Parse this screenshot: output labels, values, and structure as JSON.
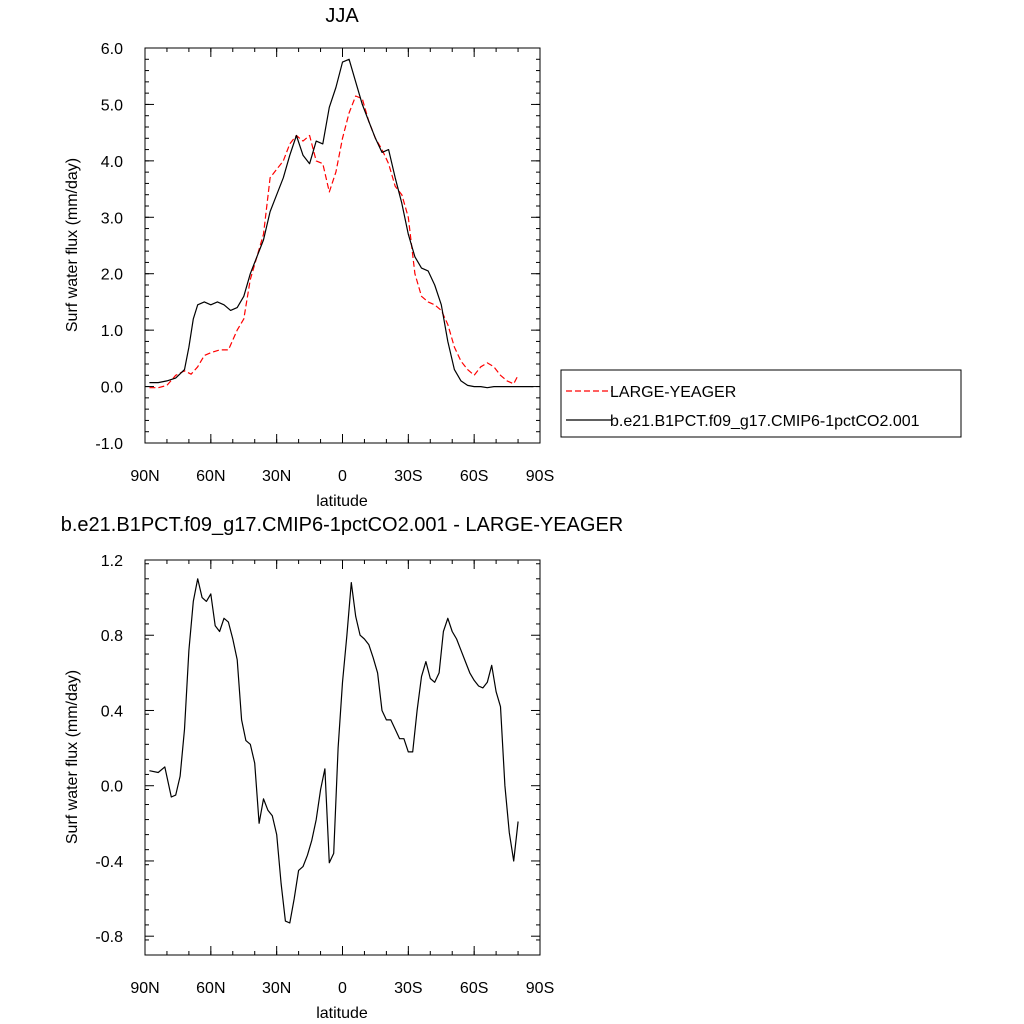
{
  "chart_data": [
    {
      "type": "line",
      "title": "JJA",
      "xlabel": "latitude",
      "ylabel": "Surf water flux (mm/day)",
      "xlim": [
        90,
        -90
      ],
      "ylim": [
        -1.0,
        6.0
      ],
      "x_ticks": [
        90,
        60,
        30,
        0,
        -30,
        -60,
        -90
      ],
      "x_tick_labels": [
        "90N",
        "60N",
        "30N",
        "0",
        "30S",
        "60S",
        "90S"
      ],
      "y_ticks": [
        -1.0,
        0.0,
        1.0,
        2.0,
        3.0,
        4.0,
        5.0,
        6.0
      ],
      "y_tick_labels": [
        "-1.0",
        "0.0",
        "1.0",
        "2.0",
        "3.0",
        "4.0",
        "5.0",
        "6.0"
      ],
      "grid": false,
      "legend_position": "right",
      "series": [
        {
          "name": "LARGE-YEAGER",
          "color": "#ff0000",
          "style": "dashed",
          "x": [
            88,
            84,
            80,
            76,
            72,
            69,
            66,
            63,
            60,
            56,
            52,
            48,
            45,
            42,
            39,
            36,
            33,
            30,
            27,
            24,
            21,
            18,
            15,
            12,
            9,
            6,
            3,
            0,
            -3,
            -6,
            -9,
            -12,
            -15,
            -18,
            -21,
            -24,
            -27,
            -30,
            -33,
            -36,
            -39,
            -42,
            -45,
            -48,
            -51,
            -54,
            -57,
            -60,
            -63,
            -66,
            -69,
            -72,
            -75,
            -78,
            -80
          ],
          "y": [
            -0.02,
            -0.02,
            0.02,
            0.2,
            0.28,
            0.22,
            0.35,
            0.55,
            0.6,
            0.65,
            0.65,
            1.0,
            1.2,
            1.9,
            2.3,
            2.7,
            3.7,
            3.85,
            4.0,
            4.3,
            4.45,
            4.35,
            4.45,
            4.0,
            3.95,
            3.45,
            3.8,
            4.4,
            4.85,
            5.15,
            5.1,
            4.7,
            4.4,
            4.2,
            3.95,
            3.55,
            3.4,
            3.0,
            2.0,
            1.6,
            1.5,
            1.45,
            1.35,
            1.1,
            0.7,
            0.45,
            0.3,
            0.2,
            0.35,
            0.42,
            0.35,
            0.2,
            0.1,
            0.05,
            0.2
          ]
        },
        {
          "name": "b.e21.B1PCT.f09_g17.CMIP6-1pctCO2.001",
          "color": "#000000",
          "style": "solid",
          "x": [
            88,
            84,
            80,
            76,
            72,
            70,
            68,
            66,
            63,
            60,
            57,
            54,
            51,
            48,
            45,
            42,
            39,
            36,
            33,
            30,
            27,
            24,
            21,
            18,
            15,
            12,
            9,
            6,
            3,
            0,
            -3,
            -6,
            -9,
            -12,
            -15,
            -18,
            -21,
            -24,
            -27,
            -30,
            -33,
            -36,
            -39,
            -42,
            -45,
            -48,
            -51,
            -54,
            -57,
            -60,
            -63,
            -66,
            -69,
            -72,
            -75,
            -78,
            -81,
            -84,
            -87
          ],
          "y": [
            0.07,
            0.07,
            0.1,
            0.15,
            0.3,
            0.7,
            1.2,
            1.45,
            1.5,
            1.45,
            1.5,
            1.45,
            1.35,
            1.4,
            1.6,
            2.0,
            2.3,
            2.6,
            3.1,
            3.4,
            3.7,
            4.1,
            4.45,
            4.1,
            3.95,
            4.35,
            4.3,
            4.95,
            5.3,
            5.75,
            5.8,
            5.4,
            5.0,
            4.7,
            4.4,
            4.15,
            4.2,
            3.7,
            3.25,
            2.7,
            2.3,
            2.1,
            2.05,
            1.8,
            1.45,
            0.8,
            0.3,
            0.1,
            0.02,
            0.0,
            0.0,
            -0.02,
            0.0,
            0.0,
            0.0,
            0.0,
            0.0,
            0.0,
            0.0
          ]
        }
      ]
    },
    {
      "type": "line",
      "title": "b.e21.B1PCT.f09_g17.CMIP6-1pctCO2.001 - LARGE-YEAGER",
      "xlabel": "latitude",
      "ylabel": "Surf water flux (mm/day)",
      "xlim": [
        90,
        -90
      ],
      "ylim": [
        -0.9,
        1.2
      ],
      "x_ticks": [
        90,
        60,
        30,
        0,
        -30,
        -60,
        -90
      ],
      "x_tick_labels": [
        "90N",
        "60N",
        "30N",
        "0",
        "30S",
        "60S",
        "90S"
      ],
      "y_ticks": [
        -0.8,
        -0.4,
        0.0,
        0.4,
        0.8,
        1.2
      ],
      "y_tick_labels": [
        "-0.8",
        "-0.4",
        "0.0",
        "0.4",
        "0.8",
        "1.2"
      ],
      "grid": false,
      "series": [
        {
          "color": "#000000",
          "style": "solid",
          "x": [
            88,
            84,
            81,
            78,
            76,
            74,
            72,
            70,
            68,
            66,
            64,
            62,
            60,
            58,
            56,
            54,
            52,
            50,
            48,
            46,
            44,
            42,
            40,
            38,
            36,
            34,
            32,
            30,
            28,
            26,
            24,
            22,
            20,
            18,
            16,
            14,
            12,
            10,
            8,
            6,
            4,
            2,
            0,
            -2,
            -4,
            -6,
            -8,
            -10,
            -12,
            -14,
            -16,
            -18,
            -20,
            -22,
            -24,
            -26,
            -28,
            -30,
            -32,
            -34,
            -36,
            -38,
            -40,
            -42,
            -44,
            -46,
            -48,
            -50,
            -52,
            -54,
            -56,
            -58,
            -60,
            -62,
            -64,
            -66,
            -68,
            -70,
            -72,
            -74,
            -76,
            -78,
            -80
          ],
          "y": [
            0.08,
            0.07,
            0.1,
            -0.06,
            -0.05,
            0.05,
            0.3,
            0.72,
            0.98,
            1.1,
            1.0,
            0.98,
            1.02,
            0.85,
            0.82,
            0.89,
            0.87,
            0.78,
            0.67,
            0.35,
            0.24,
            0.22,
            0.12,
            -0.2,
            -0.07,
            -0.13,
            -0.16,
            -0.26,
            -0.52,
            -0.72,
            -0.73,
            -0.6,
            -0.45,
            -0.43,
            -0.37,
            -0.29,
            -0.18,
            -0.02,
            0.09,
            -0.41,
            -0.36,
            0.2,
            0.55,
            0.8,
            1.08,
            0.9,
            0.8,
            0.78,
            0.75,
            0.68,
            0.6,
            0.4,
            0.35,
            0.35,
            0.3,
            0.25,
            0.25,
            0.18,
            0.18,
            0.4,
            0.58,
            0.66,
            0.57,
            0.55,
            0.6,
            0.82,
            0.89,
            0.82,
            0.78,
            0.72,
            0.66,
            0.6,
            0.56,
            0.53,
            0.52,
            0.55,
            0.64,
            0.5,
            0.42,
            0.0,
            -0.25,
            -0.4,
            -0.19
          ]
        }
      ]
    }
  ]
}
